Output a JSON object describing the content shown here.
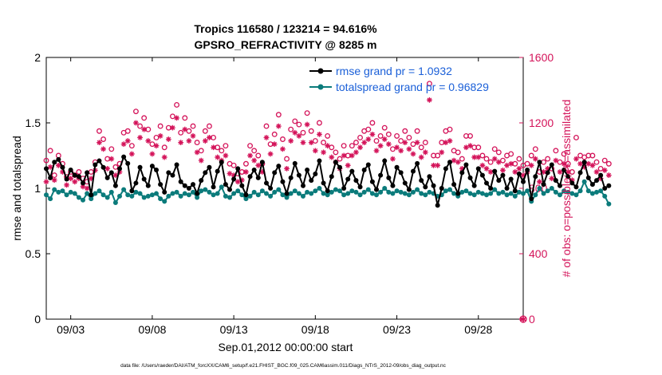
{
  "colors": {
    "rmse": "#000000",
    "spread": "#0b7b7b",
    "obs": "#d4145a",
    "legend_text": "#1a5fd8",
    "axis": "#000000"
  },
  "chart_data": {
    "type": "line",
    "title": "Tropics 116580 / 123214 = 94.616%",
    "subtitle": "GPSRO_REFRACTIVITY @ 8285 m",
    "xlabel": "Sep.01,2012 00:00:00 start",
    "ylabel": "rmse and totalspread",
    "y2label": "# of obs: o=possible; ∗=assimilated",
    "footer": "data file: /Users/raeder/DAI/ATM_forcXX/CAM6_setup/f.e21.FHIST_BGC.f09_025.CAM6assim.011/Diags_NTrS_2012-09/obs_diag_output.nc",
    "xlim": [
      1.5,
      30.75
    ],
    "ylim": [
      0,
      2
    ],
    "y2lim": [
      0,
      1600
    ],
    "xticks": [
      3,
      8,
      13,
      18,
      23,
      28
    ],
    "xtick_labels": [
      "09/03",
      "09/08",
      "09/13",
      "09/18",
      "09/23",
      "09/28"
    ],
    "yticks": [
      0,
      0.5,
      1,
      1.5,
      2
    ],
    "ytick_labels": [
      "0",
      "0.5",
      "1",
      "1.5",
      "2"
    ],
    "y2ticks": [
      0,
      400,
      800,
      1200,
      1600
    ],
    "y2tick_labels": [
      "0",
      "400",
      "800",
      "1200",
      "1600"
    ],
    "x_start": 1.5,
    "x_step": 0.25,
    "series": [
      {
        "name": "rmse grand pr = 1.0932",
        "axis": "left",
        "values": [
          1.15,
          1.08,
          1.2,
          1.22,
          1.16,
          1.07,
          1.14,
          1.1,
          1.09,
          1.04,
          1.12,
          0.95,
          1.18,
          1.21,
          1.16,
          1.08,
          1.12,
          1.02,
          1.15,
          1.24,
          1.19,
          0.98,
          1.04,
          1.16,
          1.07,
          1.02,
          1.17,
          1.14,
          1.03,
          0.97,
          1.12,
          1.1,
          1.18,
          1.05,
          1.02,
          1.0,
          1.03,
          0.96,
          1.06,
          1.12,
          1.16,
          1.01,
          1.13,
          1.2,
          1.03,
          0.99,
          1.07,
          1.15,
          1.02,
          0.95,
          1.09,
          1.14,
          1.08,
          1.2,
          1.04,
          1.0,
          1.12,
          1.17,
          1.05,
          0.96,
          1.08,
          1.19,
          1.1,
          1.02,
          1.14,
          1.06,
          1.11,
          1.21,
          1.04,
          0.98,
          1.09,
          1.2,
          1.16,
          1.0,
          1.07,
          1.13,
          1.06,
          1.01,
          1.14,
          1.18,
          1.05,
          0.99,
          1.1,
          1.21,
          1.08,
          1.02,
          1.16,
          1.12,
          1.04,
          0.99,
          1.13,
          1.19,
          1.06,
          1.01,
          1.09,
          1.02,
          0.87,
          1.0,
          1.15,
          1.2,
          1.03,
          0.96,
          1.12,
          1.18,
          1.08,
          1.02,
          1.15,
          1.1,
          1.04,
          1.0,
          1.13,
          1.06,
          1.1,
          1.0,
          1.07,
          0.98,
          1.11,
          1.05,
          1.14,
          0.92,
          1.09,
          1.2,
          1.03,
          1.12,
          1.18,
          1.06,
          1.02,
          1.14,
          1.09,
          1.04,
          1.01,
          1.12,
          1.2,
          1.08,
          1.03,
          1.06,
          1.1,
          1.0,
          1.02
        ]
      },
      {
        "name": "totalspread grand pr = 0.96829",
        "axis": "left",
        "values": [
          0.95,
          0.92,
          0.99,
          0.97,
          0.98,
          0.95,
          0.97,
          0.96,
          0.93,
          0.91,
          0.96,
          0.92,
          0.96,
          0.98,
          0.95,
          0.93,
          0.97,
          0.89,
          0.94,
          0.99,
          0.95,
          0.94,
          0.97,
          0.96,
          0.93,
          0.94,
          0.95,
          0.96,
          0.92,
          0.9,
          0.94,
          0.96,
          0.97,
          0.94,
          0.96,
          0.95,
          0.97,
          0.93,
          0.98,
          0.99,
          0.97,
          0.95,
          0.96,
          1.01,
          0.94,
          0.93,
          0.96,
          0.98,
          0.95,
          0.92,
          0.94,
          0.97,
          0.95,
          0.98,
          0.96,
          0.94,
          0.97,
          0.99,
          0.95,
          0.93,
          0.96,
          0.98,
          0.96,
          0.94,
          0.97,
          0.96,
          0.98,
          1.0,
          0.96,
          0.95,
          0.97,
          0.99,
          0.98,
          0.95,
          0.96,
          0.98,
          0.97,
          0.95,
          0.97,
          0.99,
          0.96,
          0.95,
          0.97,
          1.0,
          0.97,
          0.96,
          0.98,
          0.97,
          0.96,
          0.95,
          0.97,
          0.99,
          0.96,
          0.95,
          0.97,
          0.96,
          0.94,
          0.95,
          0.98,
          0.99,
          0.96,
          0.94,
          0.97,
          0.98,
          0.96,
          0.95,
          0.97,
          0.96,
          0.95,
          0.96,
          0.99,
          0.96,
          0.97,
          0.95,
          0.96,
          0.94,
          0.97,
          0.96,
          0.98,
          0.9,
          0.95,
          1.0,
          0.96,
          0.98,
          1.0,
          0.97,
          0.95,
          0.98,
          0.97,
          0.96,
          0.95,
          0.98,
          1.05,
          0.98,
          0.96,
          0.97,
          0.98,
          0.94,
          0.88
        ]
      },
      {
        "name": "possible obs",
        "axis": "right",
        "marker": "o",
        "values": [
          970,
          1030,
          880,
          1000,
          950,
          870,
          900,
          880,
          900,
          860,
          840,
          900,
          960,
          1150,
          1100,
          980,
          1040,
          930,
          950,
          1140,
          1150,
          1060,
          1270,
          1180,
          1230,
          1160,
          1070,
          1110,
          1180,
          1050,
          1170,
          1240,
          1310,
          1140,
          1230,
          1150,
          1180,
          1080,
          1030,
          1150,
          1180,
          1110,
          1050,
          1030,
          1060,
          950,
          940,
          890,
          900,
          950,
          1060,
          1030,
          1000,
          950,
          1180,
          1070,
          1130,
          1250,
          1100,
          980,
          1160,
          1210,
          1190,
          1140,
          1260,
          1150,
          1090,
          1200,
          1080,
          1120,
          1050,
          1020,
          980,
          1060,
          1000,
          1060,
          1080,
          1110,
          1150,
          1160,
          1200,
          1090,
          1120,
          1170,
          1130,
          1040,
          1120,
          1090,
          1150,
          1110,
          1070,
          1150,
          1050,
          1080,
          1440,
          1000,
          1000,
          1080,
          1150,
          1160,
          1030,
          1020,
          980,
          1120,
          1120,
          1050,
          1050,
          1000,
          980,
          960,
          1040,
          1020,
          970,
          1000,
          1010,
          950,
          980,
          940,
          950,
          1000,
          1040,
          900,
          960,
          980,
          920,
          1030,
          960,
          1010,
          950,
          900,
          1110,
          1000,
          990,
          1000,
          1000,
          960,
          920,
          970,
          950
        ]
      },
      {
        "name": "assimilated obs",
        "axis": "right",
        "marker": "*",
        "values": [
          840,
          930,
          850,
          940,
          900,
          820,
          860,
          840,
          860,
          810,
          800,
          860,
          910,
          1080,
          1040,
          920,
          980,
          880,
          900,
          1070,
          1090,
          1010,
          1200,
          1110,
          1160,
          1090,
          1010,
          1060,
          1120,
          990,
          1100,
          1170,
          1230,
          1080,
          1160,
          1090,
          1120,
          1020,
          970,
          1090,
          1110,
          1050,
          990,
          970,
          1000,
          890,
          880,
          840,
          850,
          900,
          1000,
          970,
          940,
          900,
          1110,
          1010,
          1070,
          1180,
          1040,
          920,
          1090,
          1140,
          1120,
          1080,
          1190,
          1080,
          1030,
          1130,
          1020,
          1060,
          990,
          960,
          920,
          1000,
          940,
          1000,
          1020,
          1050,
          1080,
          1100,
          1130,
          1030,
          1060,
          1100,
          1070,
          980,
          1050,
          1030,
          1080,
          1040,
          1010,
          1080,
          990,
          1020,
          1340,
          940,
          940,
          1020,
          1080,
          1090,
          970,
          960,
          920,
          1050,
          1060,
          990,
          990,
          940,
          920,
          900,
          980,
          960,
          910,
          940,
          950,
          900,
          920,
          880,
          900,
          940,
          980,
          840,
          900,
          920,
          860,
          970,
          900,
          950,
          900,
          850,
          980,
          950,
          930,
          950,
          940,
          900,
          860,
          910,
          880
        ]
      }
    ],
    "legend": [
      "rmse grand pr = 1.0932",
      "totalspread grand pr = 0.96829"
    ],
    "legend_position": "top-right",
    "grid": false
  }
}
